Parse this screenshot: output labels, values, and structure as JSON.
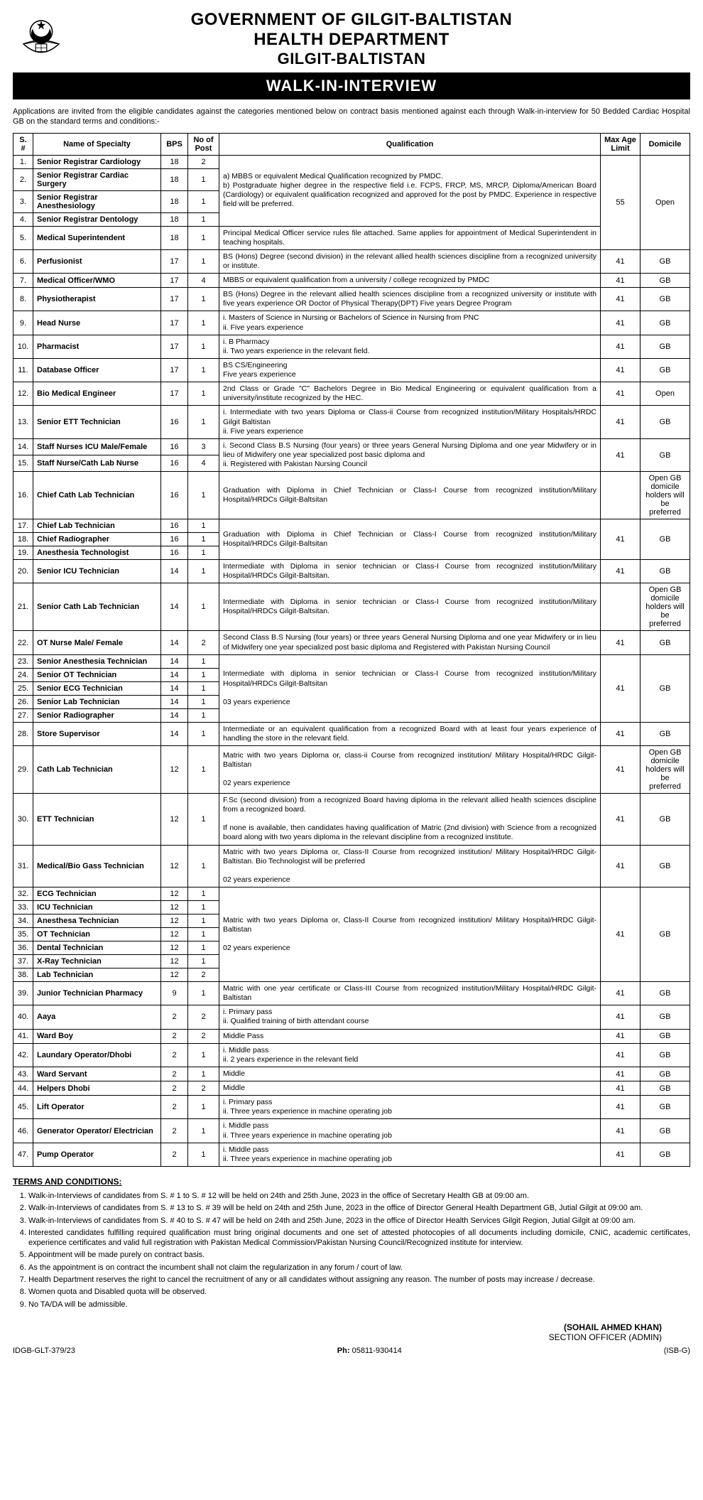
{
  "header": {
    "org_line1": "GOVERNMENT OF GILGIT-BALTISTAN",
    "org_line2": "HEALTH DEPARTMENT",
    "org_line3": "GILGIT-BALTISTAN",
    "banner": "WALK-IN-INTERVIEW"
  },
  "intro": "Applications are invited from the eligible candidates against the categories mentioned below on contract basis mentioned against each through Walk-in-interview for 50 Bedded Cardiac Hospital GB on the standard terms and conditions:-",
  "columns": {
    "sn": "S. #",
    "name": "Name of Specialty",
    "bps": "BPS",
    "no": "No of Post",
    "qual": "Qualification",
    "age": "Max Age Limit",
    "dom": "Domicile"
  },
  "q": {
    "q1": "a)  MBBS or equivalent Medical Qualification recognized by PMDC.\nb)  Postgraduate higher degree in the respective field i.e. FCPS, FRCP, MS, MRCP, Diploma/American Board (Cardiology) or equivalent qualification recognized and approved for the post by PMDC. Experience in respective field will be preferred.",
    "q5": "Principal Medical Officer service rules file attached. Same applies for appointment of Medical Superintendent in teaching hospitals.",
    "q6": "BS (Hons) Degree (second division) in the relevant allied health sciences discipline from a recognized university or institute.",
    "q7": "MBBS or equivalent qualification from a university / college recognized by PMDC",
    "q8": "BS (Hons) Degree in the relevant allied health sciences discipline from a recognized university or institute with five years experience   OR   Doctor of Physical Therapy(DPT) Five years Degree Program",
    "q9": "i.  Masters of Science in Nursing or Bachelors of Science in Nursing from PNC\nii.  Five years experience",
    "q10": "i.  B Pharmacy\nii.  Two years experience in the relevant field.",
    "q11": "BS CS/Engineering\nFive years experience",
    "q12": "2nd Class or Grade \"C\" Bachelors Degree in Bio Medical Engineering or equivalent qualification from a university/institute recognized by the HEC.",
    "q13": "i.  Intermediate with two years Diploma or Class-ii Course from recognized institution/Military Hospitals/HRDC Gilgit Baltistan\nii.  Five years experience",
    "q14": "i.  Second Class B.S Nursing (four years) or three years General Nursing Diploma and one year Midwifery or in lieu of Midwifery one year specialized post basic diploma and\nii.  Registered with Pakistan Nursing Council",
    "q16": "Graduation with Diploma in Chief Technician or Class-I Course from recognized institution/Military Hospital/HRDCs Gilgit-Baltsitan",
    "q17": "Graduation with Diploma in Chief Technician or Class-I Course from recognized institution/Military Hospital/HRDCs Gilgit-Baltsitan",
    "q20": "Intermediate with Diploma in senior technician or Class-I Course from recognized institution/Military Hospital/HRDCs Gilgit-Baltsitan.",
    "q21": "Intermediate with Diploma in senior technician or Class-I Course from recognized institution/Military Hospital/HRDCs Gilgit-Baltsitan.",
    "q22": "Second Class B.S Nursing (four years) or three years General Nursing Diploma and one year Midwifery or in lieu of Midwifery one year specialized post basic diploma and Registered with Pakistan Nursing Council",
    "q23": "Intermediate with diploma in senior technician or Class-I Course from recognized institution/Military Hospital/HRDCs Gilgit-Baltsitan\n\n03 years experience",
    "q28": "Intermediate or an equivalent qualification from a recognized Board with at least four years experience of handling the store in the relevant field.",
    "q29": "Matric with two years Diploma or, class-ii Course from recognized institution/ Military Hospital/HRDC Gilgit-Baltistan\n\n02 years experience",
    "q30": "F.Sc (second division) from a recognized Board having diploma in the relevant allied health sciences discipline from a recognized board.\n\nIf none is available, then candidates having qualification of Matric (2nd division) with Science from a recognized board along with two years diploma in the relevant discipline from a recognized institute.",
    "q31": "Matric with two years Diploma or, Class-II Course from recognized institution/ Military Hospital/HRDC Gilgit-Baltistan. Bio Technologist will be preferred\n\n02 years experience",
    "q32": "Matric with two years Diploma or, Class-II Course from recognized institution/ Military Hospital/HRDC Gilgit-Baltistan\n\n02 years experience",
    "q39": "Matric with one year certificate or Class-III Course from recognized institution/Military Hospital/HRDC Gilgit-Baltistan",
    "q40": "i.  Primary pass\nii.  Qualified training of birth attendant course",
    "q41": "Middle Pass",
    "q42": "i.  Middle pass\nii.  2 years experience in the relevant field",
    "q43": "Middle",
    "q44": "Middle",
    "q45": "i.  Primary pass\nii.  Three years experience in machine operating job",
    "q46": "i.  Middle pass\nii.  Three years experience in machine operating job",
    "q47": "i.  Middle pass\nii.  Three years experience in machine operating job"
  },
  "rows": [
    {
      "sn": "1.",
      "name": "Senior Registrar Cardiology",
      "bps": "18",
      "no": "2"
    },
    {
      "sn": "2.",
      "name": "Senior Registrar Cardiac Surgery",
      "bps": "18",
      "no": "1"
    },
    {
      "sn": "3.",
      "name": "Senior Registrar Anesthesiology",
      "bps": "18",
      "no": "1"
    },
    {
      "sn": "4.",
      "name": "Senior Registrar Dentology",
      "bps": "18",
      "no": "1"
    },
    {
      "sn": "5.",
      "name": "Medical Superintendent",
      "bps": "18",
      "no": "1",
      "age": "",
      "dom": ""
    },
    {
      "sn": "6.",
      "name": "Perfusionist",
      "bps": "17",
      "no": "1",
      "age": "41",
      "dom": "GB"
    },
    {
      "sn": "7.",
      "name": "Medical Officer/WMO",
      "bps": "17",
      "no": "4",
      "age": "41",
      "dom": "GB"
    },
    {
      "sn": "8.",
      "name": "Physiotherapist",
      "bps": "17",
      "no": "1",
      "age": "41",
      "dom": "GB"
    },
    {
      "sn": "9.",
      "name": "Head Nurse",
      "bps": "17",
      "no": "1",
      "age": "41",
      "dom": "GB"
    },
    {
      "sn": "10.",
      "name": "Pharmacist",
      "bps": "17",
      "no": "1",
      "age": "41",
      "dom": "GB"
    },
    {
      "sn": "11.",
      "name": "Database Officer",
      "bps": "17",
      "no": "1",
      "age": "41",
      "dom": "GB"
    },
    {
      "sn": "12.",
      "name": "Bio Medical Engineer",
      "bps": "17",
      "no": "1",
      "age": "41",
      "dom": "Open"
    },
    {
      "sn": "13.",
      "name": "Senior ETT Technician",
      "bps": "16",
      "no": "1",
      "age": "41",
      "dom": "GB"
    },
    {
      "sn": "14.",
      "name": "Staff Nurses ICU Male/Female",
      "bps": "16",
      "no": "3"
    },
    {
      "sn": "15.",
      "name": "Staff Nurse/Cath Lab Nurse",
      "bps": "16",
      "no": "4"
    },
    {
      "sn": "16.",
      "name": "Chief Cath Lab Technician",
      "bps": "16",
      "no": "1",
      "age": "",
      "dom": "Open GB domicile holders will be preferred"
    },
    {
      "sn": "17.",
      "name": "Chief Lab Technician",
      "bps": "16",
      "no": "1"
    },
    {
      "sn": "18.",
      "name": "Chief Radiographer",
      "bps": "16",
      "no": "1"
    },
    {
      "sn": "19.",
      "name": "Anesthesia Technologist",
      "bps": "16",
      "no": "1"
    },
    {
      "sn": "20.",
      "name": "Senior ICU Technician",
      "bps": "14",
      "no": "1",
      "age": "41",
      "dom": "GB"
    },
    {
      "sn": "21.",
      "name": "Senior Cath Lab Technician",
      "bps": "14",
      "no": "1",
      "age": "",
      "dom": "Open GB domicile holders will be preferred"
    },
    {
      "sn": "22.",
      "name": "OT Nurse Male/ Female",
      "bps": "14",
      "no": "2",
      "age": "41",
      "dom": "GB"
    },
    {
      "sn": "23.",
      "name": "Senior Anesthesia Technician",
      "bps": "14",
      "no": "1"
    },
    {
      "sn": "24.",
      "name": "Senior OT Technician",
      "bps": "14",
      "no": "1"
    },
    {
      "sn": "25.",
      "name": "Senior ECG Technician",
      "bps": "14",
      "no": "1"
    },
    {
      "sn": "26.",
      "name": "Senior Lab Technician",
      "bps": "14",
      "no": "1"
    },
    {
      "sn": "27.",
      "name": "Senior Radiographer",
      "bps": "14",
      "no": "1"
    },
    {
      "sn": "28.",
      "name": "Store Supervisor",
      "bps": "14",
      "no": "1",
      "age": "41",
      "dom": "GB"
    },
    {
      "sn": "29.",
      "name": "Cath Lab Technician",
      "bps": "12",
      "no": "1",
      "age": "41",
      "dom": "Open GB domicile holders will be preferred"
    },
    {
      "sn": "30.",
      "name": "ETT Technician",
      "bps": "12",
      "no": "1",
      "age": "41",
      "dom": "GB"
    },
    {
      "sn": "31.",
      "name": "Medical/Bio Gass Technician",
      "bps": "12",
      "no": "1",
      "age": "41",
      "dom": "GB"
    },
    {
      "sn": "32.",
      "name": "ECG Technician",
      "bps": "12",
      "no": "1"
    },
    {
      "sn": "33.",
      "name": "ICU Technician",
      "bps": "12",
      "no": "1"
    },
    {
      "sn": "34.",
      "name": "Anesthesa Technician",
      "bps": "12",
      "no": "1"
    },
    {
      "sn": "35.",
      "name": "OT Technician",
      "bps": "12",
      "no": "1"
    },
    {
      "sn": "36.",
      "name": "Dental Technician",
      "bps": "12",
      "no": "1"
    },
    {
      "sn": "37.",
      "name": "X-Ray Technician",
      "bps": "12",
      "no": "1"
    },
    {
      "sn": "38.",
      "name": "Lab Technician",
      "bps": "12",
      "no": "2"
    },
    {
      "sn": "39.",
      "name": "Junior Technician Pharmacy",
      "bps": "9",
      "no": "1",
      "age": "41",
      "dom": "GB"
    },
    {
      "sn": "40.",
      "name": "Aaya",
      "bps": "2",
      "no": "2",
      "age": "41",
      "dom": "GB"
    },
    {
      "sn": "41.",
      "name": "Ward Boy",
      "bps": "2",
      "no": "2",
      "age": "41",
      "dom": "GB"
    },
    {
      "sn": "42.",
      "name": "Laundary Operator/Dhobi",
      "bps": "2",
      "no": "1",
      "age": "41",
      "dom": "GB"
    },
    {
      "sn": "43.",
      "name": "Ward Servant",
      "bps": "2",
      "no": "1",
      "age": "41",
      "dom": "GB"
    },
    {
      "sn": "44.",
      "name": "Helpers Dhobi",
      "bps": "2",
      "no": "2",
      "age": "41",
      "dom": "GB"
    },
    {
      "sn": "45.",
      "name": "Lift Operator",
      "bps": "2",
      "no": "1",
      "age": "41",
      "dom": "GB"
    },
    {
      "sn": "46.",
      "name": "Generator Operator/ Electrician",
      "bps": "2",
      "no": "1",
      "age": "41",
      "dom": "GB"
    },
    {
      "sn": "47.",
      "name": "Pump Operator",
      "bps": "2",
      "no": "1",
      "age": "41",
      "dom": "GB"
    }
  ],
  "group1": {
    "age": "55",
    "dom": "Open"
  },
  "group14": {
    "age": "41",
    "dom": "GB"
  },
  "group17": {
    "age": "41",
    "dom": "GB"
  },
  "group23": {
    "age": "41",
    "dom": "GB"
  },
  "group32": {
    "age": "41",
    "dom": "GB"
  },
  "terms_head": "TERMS AND CONDITIONS:",
  "terms": [
    "Walk-in-Interviews of candidates from S. # 1 to S. # 12 will be held on 24th and 25th June, 2023 in the office of Secretary Health GB at 09:00 am.",
    "Walk-in-Interviews of candidates from S. # 13 to S. # 39 will be held on 24th and 25th June, 2023 in the office of Director General Health Department GB, Jutial Gilgit at 09:00 am.",
    "Walk-in-Interviews of candidates from S. # 40 to S. # 47 will be held on 24th and 25th June, 2023 in the office of Director Health Services Gilgit Region, Jutial Gilgit at 09:00 am.",
    "Interested candidates fulfilling required qualification must bring original documents and one set of attested photocopies of all documents including domicile, CNIC, academic certificates, experience certificates and valid full registration with Pakistan Medical Commission/Pakistan Nursing Council/Recognized institute for interview.",
    "Appointment will be made purely on contract basis.",
    "As the appointment is on contract the incumbent shall not claim the regularization in any forum / court of law.",
    "Health Department reserves the right to cancel the recruitment of any or all candidates without assigning any reason. The number of posts may increase / decrease.",
    "Women quota and Disabled quota will be observed.",
    "No TA/DA will be admissible."
  ],
  "sign": {
    "name": "(SOHAIL AHMED KHAN)",
    "desig": "SECTION OFFICER (ADMIN)"
  },
  "footer": {
    "ref": "IDGB-GLT-379/23",
    "ph_label": "Ph:",
    "ph": "05811-930414",
    "code": "(ISB-G)"
  }
}
